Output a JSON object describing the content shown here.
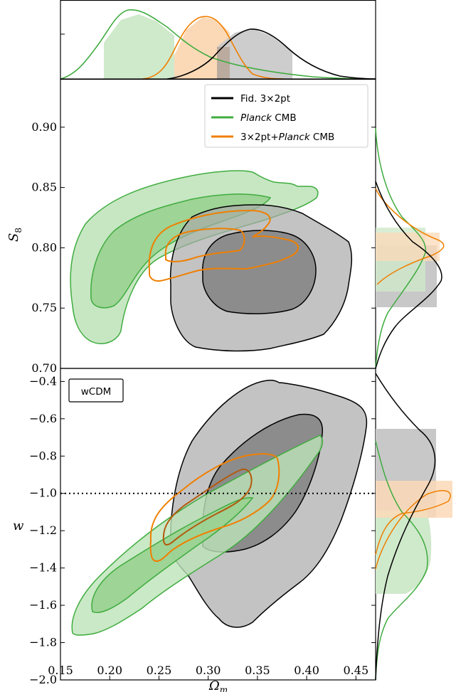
{
  "chart_data": {
    "type": "corner-contour",
    "title": "",
    "panels": [
      {
        "name": "s8",
        "xlim": [
          0.15,
          0.47
        ],
        "ylim": [
          0.7,
          0.94
        ],
        "ylabel_sym": "S",
        "ylabel_sub": "8",
        "yticks": [
          "0.70",
          "0.75",
          "0.80",
          "0.85",
          "0.90"
        ]
      },
      {
        "name": "w",
        "xlim": [
          0.15,
          0.47
        ],
        "ylim": [
          -2.0,
          -0.33
        ],
        "ylabel_sym": "w",
        "yticks": [
          "−2.0",
          "−1.8",
          "−1.6",
          "−1.4",
          "−1.2",
          "−1.0",
          "−0.8",
          "−0.6",
          "−0.4"
        ],
        "reference_line": {
          "y": -1.0,
          "style": "dotted"
        },
        "annotation": "wCDM"
      }
    ],
    "xlabel_sym": "Ω",
    "xlabel_sub": "m",
    "xticks": [
      "0.15",
      "0.20",
      "0.25",
      "0.30",
      "0.35",
      "0.40",
      "0.45"
    ],
    "legend": {
      "placement": "top-right",
      "entries": [
        {
          "pre": "Fid. 3×2pt",
          "ital": "",
          "post": "",
          "color": "#000000"
        },
        {
          "pre": "",
          "ital": "Planck",
          "post": " CMB",
          "color": "#3fac3f"
        },
        {
          "pre": "3×2pt+",
          "ital": "Planck",
          "post": " CMB",
          "color": "#f07f00"
        }
      ]
    },
    "colors": {
      "fid": "#000000",
      "fid_fill": "#9a9a9a",
      "planck": "#3fac3f",
      "planck_fill": "#a9dca3",
      "joint": "#f07f00",
      "joint_dark": "#b25a0c"
    },
    "series": [
      {
        "key": "fid",
        "omega_m_center": 0.35,
        "s8_center": 0.78,
        "w_center": -1.05
      },
      {
        "key": "planck",
        "omega_m_center": 0.22,
        "s8_center": 0.8,
        "w_center": -1.35
      },
      {
        "key": "joint",
        "omega_m_center": 0.3,
        "s8_center": 0.8,
        "w_center": -1.05
      }
    ],
    "marginals": {
      "omega_m": [
        {
          "key": "planck",
          "peak": 0.218,
          "interval68": [
            0.195,
            0.266
          ]
        },
        {
          "key": "joint",
          "peak": 0.292,
          "interval68": [
            0.266,
            0.322
          ]
        },
        {
          "key": "fid",
          "peak": 0.35,
          "interval68": [
            0.312,
            0.385
          ]
        }
      ],
      "s8": [
        {
          "key": "fid",
          "peak": 0.785,
          "interval68": [
            0.75,
            0.8
          ]
        },
        {
          "key": "planck",
          "peak": 0.8,
          "interval68": [
            0.765,
            0.818
          ]
        },
        {
          "key": "joint",
          "peak": 0.802,
          "interval68": [
            0.789,
            0.813
          ]
        }
      ],
      "w": [
        {
          "key": "fid",
          "peak": -0.85,
          "interval68": [
            -1.18,
            -0.65
          ]
        },
        {
          "key": "planck",
          "peak": -1.45,
          "interval68": [
            -1.63,
            -1.2
          ]
        },
        {
          "key": "joint",
          "peak": -1.05,
          "interval68": [
            -1.17,
            -0.96
          ]
        }
      ]
    }
  }
}
